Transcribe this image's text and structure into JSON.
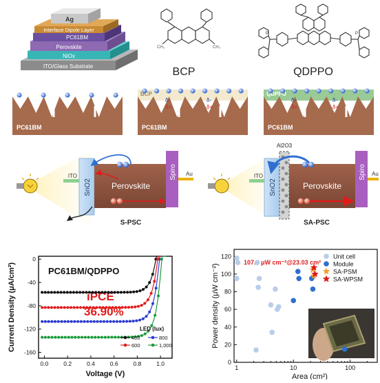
{
  "stack": {
    "layers": [
      "Ag",
      "Interface Dipole Layer",
      "PC61BM",
      "Perovskite",
      "NiOx",
      "ITO/Glass Substrate"
    ],
    "colors": {
      "ag": "#c8c8c8",
      "dipole": "#c98a34",
      "pcbm": "#6b4fa0",
      "perovskite": "#8e6ab3",
      "nio": "#38b6b6",
      "ito": "#8c8c8c"
    }
  },
  "molecules": {
    "bcp_label": "BCP",
    "qdppo_label": "QDPPO"
  },
  "interfaces": {
    "panel1": {
      "label": "PC61BM"
    },
    "panel2": {
      "label": "PC61BM",
      "top_label": "BCP",
      "delta_minus": "δ-",
      "delta_plus": "δ+"
    },
    "panel3": {
      "label": "PC61BM",
      "top_label": "QDPPO",
      "delta_minus": "δ-",
      "delta_plus": "δ+"
    }
  },
  "devices": {
    "left": {
      "ito": "ITO",
      "etl": "SnO2",
      "absorber": "Perovskite",
      "htl": "Spiro",
      "electrode": "Au",
      "name": "S-PSC",
      "electron": "e",
      "hole": "h"
    },
    "right": {
      "ito": "ITO",
      "etl": "SnO2",
      "interlayer": "Al2O3",
      "absorber": "Perovskite",
      "htl": "Spiro",
      "electrode": "Au",
      "name": "SA-PSC",
      "electron": "e",
      "hole": "h"
    }
  },
  "jv_chart": {
    "chart_data": {
      "type": "line",
      "title": "PC61BM/QDPPO",
      "xlabel": "Voltage (V)",
      "ylabel": "Current Density (μA/cm²)",
      "xlim": [
        -0.05,
        1.1
      ],
      "ylim": [
        -170,
        5
      ],
      "xticks": [
        "0.0",
        "0.2",
        "0.4",
        "0.6",
        "0.8",
        "1.0"
      ],
      "yticks": [
        "0",
        "-40",
        "-80",
        "-120",
        "-160"
      ],
      "legend_title": "LED (lux)",
      "annotation": {
        "label": "iPCE",
        "value": "36.90%"
      },
      "series": [
        {
          "name": "400",
          "color": "#111111",
          "jsc": -57,
          "voc": 0.96
        },
        {
          "name": "800",
          "color": "#2a3cd0",
          "jsc": -107,
          "voc": 0.99
        },
        {
          "name": "600",
          "color": "#e01b1b",
          "jsc": -83,
          "voc": 0.975
        },
        {
          "name": "1,000",
          "color": "#1a9a3a",
          "jsc": -134,
          "voc": 1.01
        }
      ]
    }
  },
  "power_chart": {
    "chart_data": {
      "type": "scatter",
      "xlabel": "Area (cm²)",
      "ylabel": "Power density (μW cm⁻²)",
      "xscale": "log",
      "xlim": [
        0.9,
        300
      ],
      "ylim": [
        0,
        128
      ],
      "xticks": [
        "1",
        "10",
        "100"
      ],
      "yticks": [
        "0",
        "20",
        "40",
        "60",
        "80",
        "100",
        "120"
      ],
      "annotation": "107.3 μW cm⁻²@23.03 cm²",
      "legend": [
        "Unit cell",
        "Module",
        "SA-PSM",
        "SA-WPSM"
      ],
      "series": [
        {
          "name": "Unit cell",
          "color": "#b9cdea",
          "points": [
            [
              1.0,
              118
            ],
            [
              1.0,
              95
            ],
            [
              1.05,
              113
            ],
            [
              2.3,
              113
            ],
            [
              2.4,
              85
            ],
            [
              2.5,
              95
            ],
            [
              2.2,
              14
            ],
            [
              4.0,
              65
            ],
            [
              4.2,
              34
            ],
            [
              4.8,
              83
            ],
            [
              5.2,
              60
            ],
            [
              5.5,
              63
            ]
          ]
        },
        {
          "name": "Module",
          "color": "#2f6fd1",
          "points": [
            [
              10,
              70
            ],
            [
              12,
              103
            ],
            [
              12.5,
              95
            ],
            [
              21,
              95
            ],
            [
              22,
              83
            ],
            [
              80,
              15
            ]
          ]
        },
        {
          "name": "SA-PSM",
          "color": "#f0a030",
          "points": [
            [
              22,
              105
            ],
            [
              23,
              98
            ]
          ]
        },
        {
          "name": "SA-WPSM",
          "color": "#e01b1b",
          "points": [
            [
              23.03,
              107.3
            ],
            [
              24,
              100
            ]
          ]
        }
      ]
    }
  }
}
